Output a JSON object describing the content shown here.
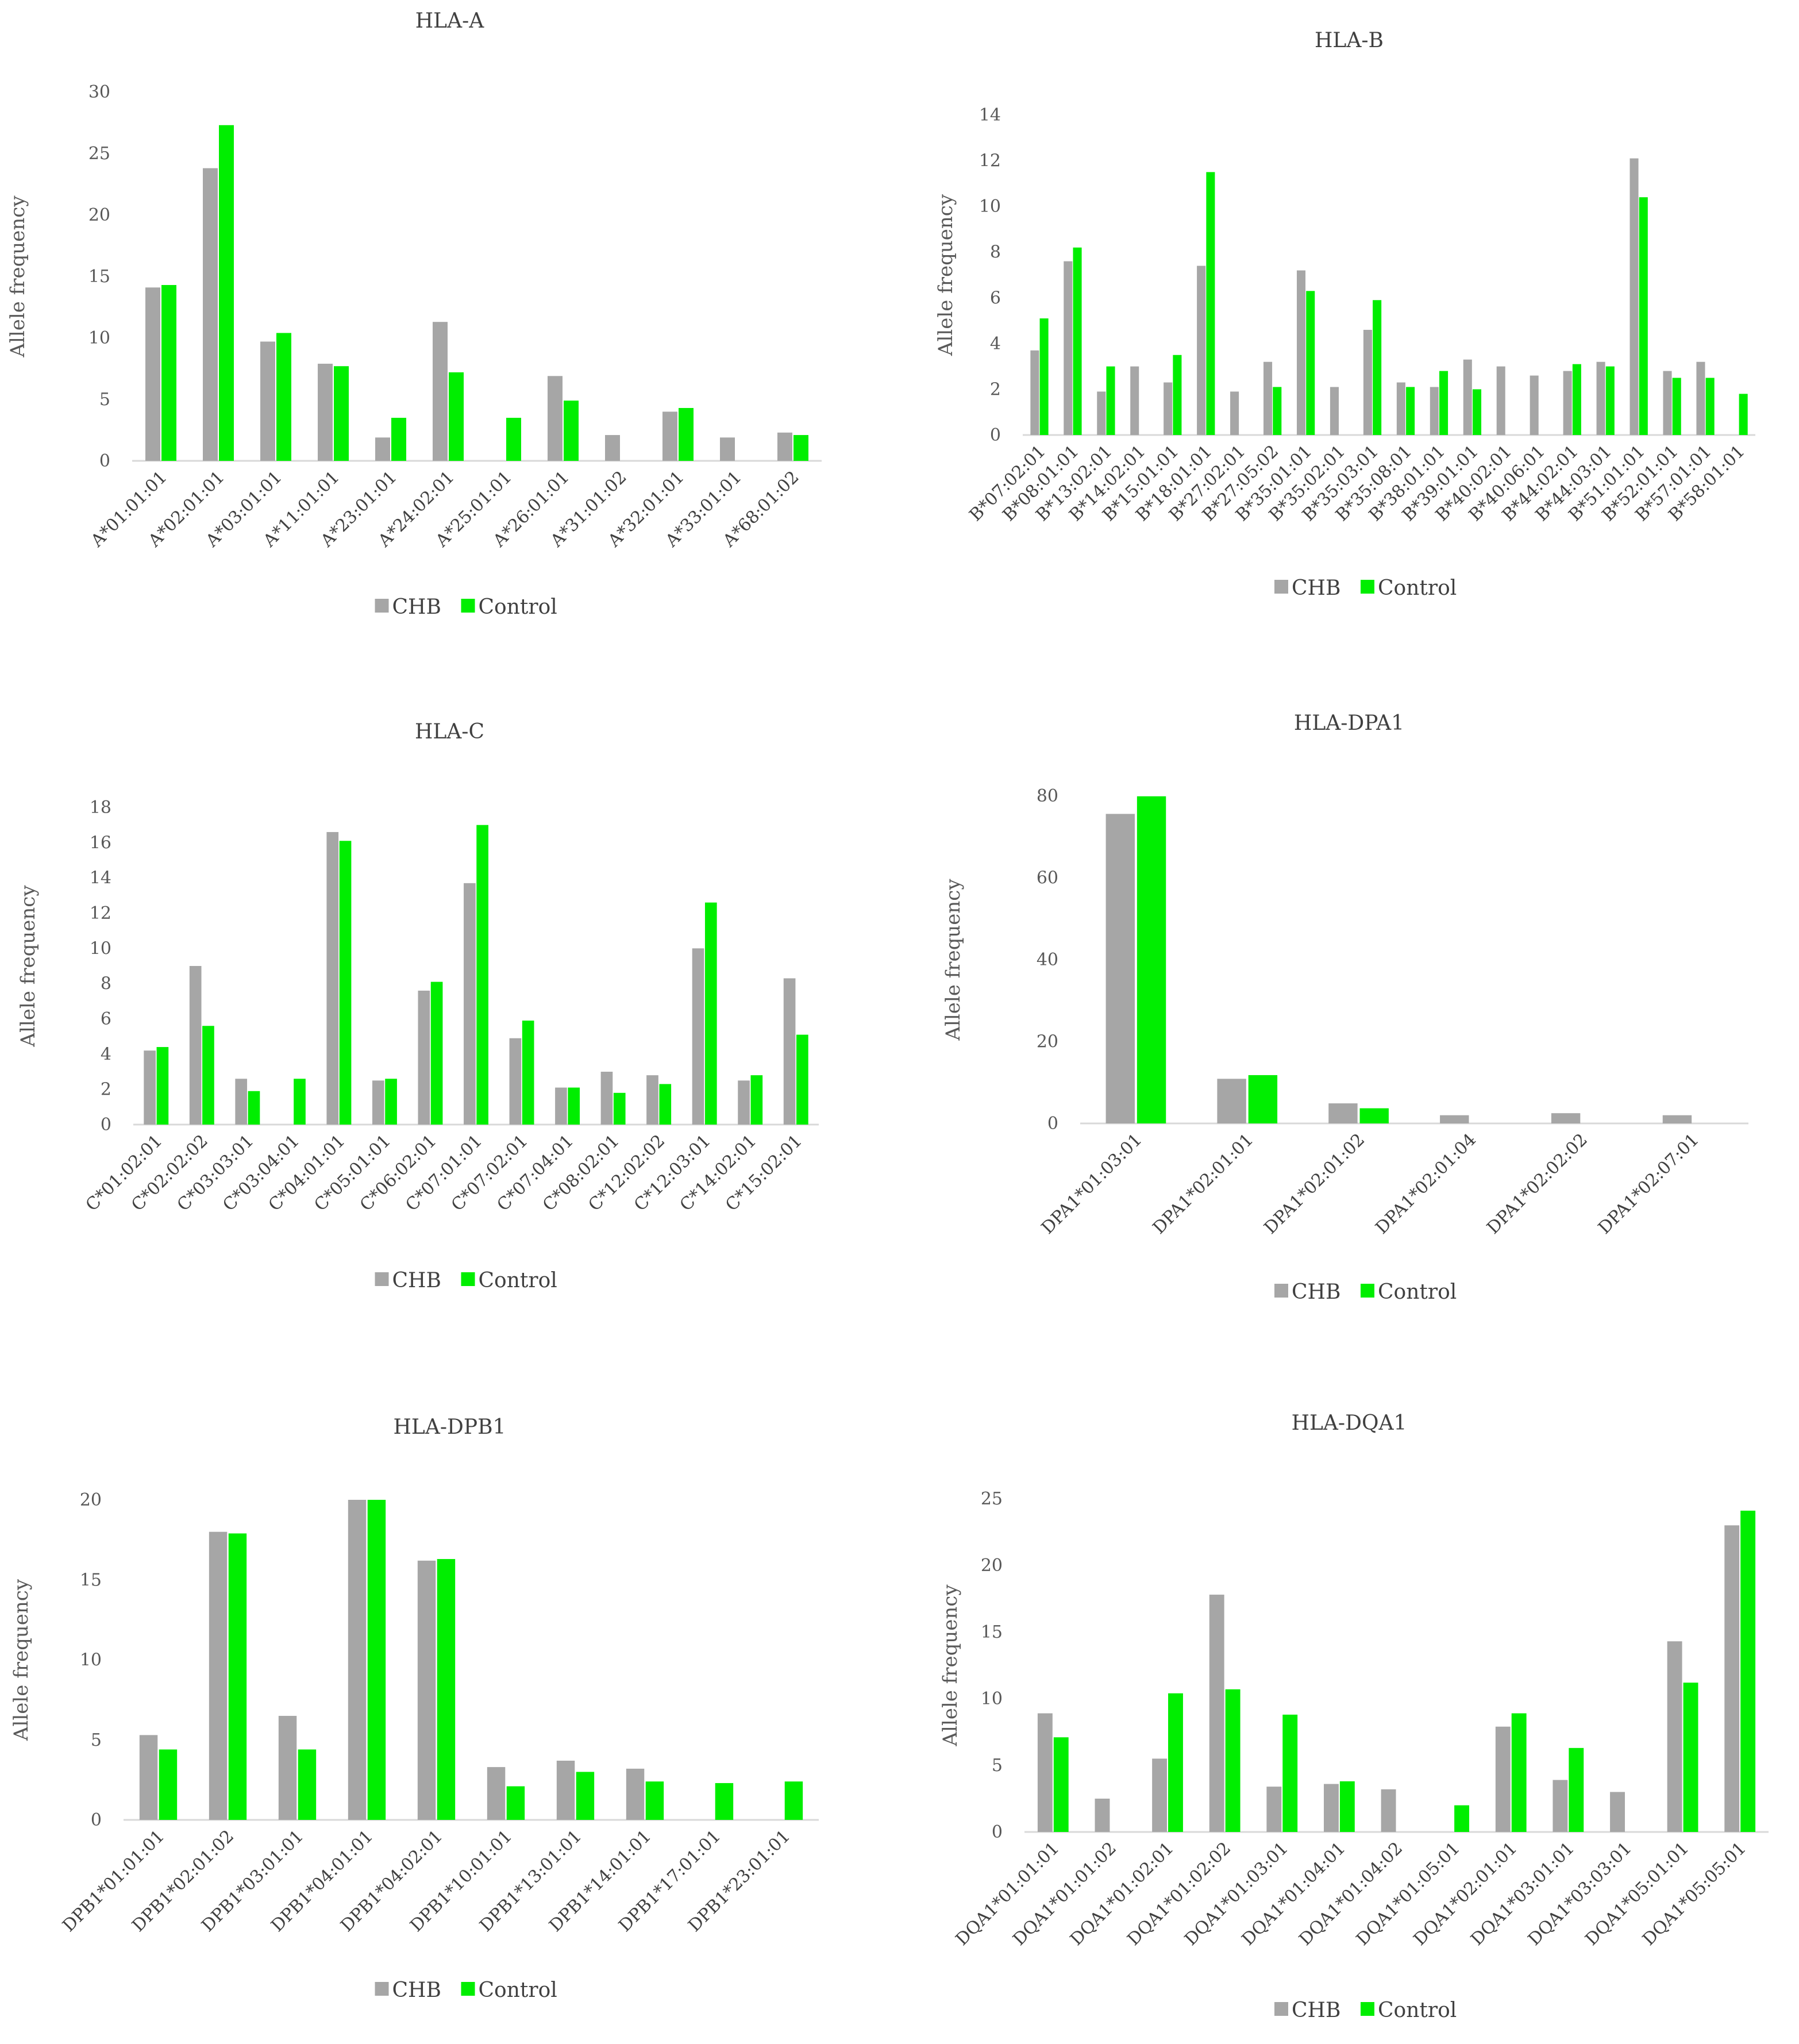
{
  "colors": {
    "CHB": "#a6a6a6",
    "Control": "#00ee00",
    "axis": "#d9d9d9"
  },
  "chart_data": [
    {
      "type": "bar",
      "title": "HLA-A",
      "ylabel": "Allele frequency",
      "ylim": [
        0,
        30
      ],
      "yticks": [
        0,
        5,
        10,
        15,
        20,
        25,
        30
      ],
      "legend_position": "bottom",
      "categories": [
        "A*01:01:01",
        "A*02:01:01",
        "A*03:01:01",
        "A*11:01:01",
        "A*23:01:01",
        "A*24:02:01",
        "A*25:01:01",
        "A*26:01:01",
        "A*31:01:02",
        "A*32:01:01",
        "A*33:01:01",
        "A*68:01:02"
      ],
      "series": [
        {
          "name": "CHB",
          "values": [
            14.1,
            23.8,
            9.7,
            7.9,
            1.9,
            11.3,
            0,
            6.9,
            2.1,
            4.0,
            1.9,
            2.3
          ]
        },
        {
          "name": "Control",
          "values": [
            14.3,
            27.3,
            10.4,
            7.7,
            3.5,
            7.2,
            3.5,
            4.9,
            0,
            4.3,
            0,
            2.1
          ]
        }
      ]
    },
    {
      "type": "bar",
      "title": "HLA-B",
      "ylabel": "Allele frequency",
      "ylim": [
        0,
        14
      ],
      "yticks": [
        0,
        2,
        4,
        6,
        8,
        10,
        12,
        14
      ],
      "legend_position": "bottom",
      "categories": [
        "B*07:02:01",
        "B*08:01:01",
        "B*13:02:01",
        "B*14:02:01",
        "B*15:01:01",
        "B*18:01:01",
        "B*27:02:01",
        "B*27:05:02",
        "B*35:01:01",
        "B*35:02:01",
        "B*35:03:01",
        "B*35:08:01",
        "B*38:01:01",
        "B*39:01:01",
        "B*40:02:01",
        "B*40:06:01",
        "B*44:02:01",
        "B*44:03:01",
        "B*51:01:01",
        "B*52:01:01",
        "B*57:01:01",
        "B*58:01:01"
      ],
      "series": [
        {
          "name": "CHB",
          "values": [
            3.7,
            7.6,
            1.9,
            3.0,
            2.3,
            7.4,
            1.9,
            3.2,
            7.2,
            2.1,
            4.6,
            2.3,
            2.1,
            3.3,
            3.0,
            2.6,
            2.8,
            3.2,
            12.1,
            2.8,
            3.2,
            0
          ]
        },
        {
          "name": "Control",
          "values": [
            5.1,
            8.2,
            3.0,
            0,
            3.5,
            11.5,
            0,
            2.1,
            6.3,
            0,
            5.9,
            2.1,
            2.8,
            2.0,
            0,
            0,
            3.1,
            3.0,
            10.4,
            2.5,
            2.5,
            1.8
          ]
        }
      ]
    },
    {
      "type": "bar",
      "title": "HLA-C",
      "ylabel": "Allele frequency",
      "ylim": [
        0,
        18
      ],
      "yticks": [
        0,
        2,
        4,
        6,
        8,
        10,
        12,
        14,
        16,
        18
      ],
      "legend_position": "bottom",
      "categories": [
        "C*01:02:01",
        "C*02:02:02",
        "C*03:03:01",
        "C*03:04:01",
        "C*04:01:01",
        "C*05:01:01",
        "C*06:02:01",
        "C*07:01:01",
        "C*07:02:01",
        "C*07:04:01",
        "C*08:02:01",
        "C*12:02:02",
        "C*12:03:01",
        "C*14:02:01",
        "C*15:02:01"
      ],
      "series": [
        {
          "name": "CHB",
          "values": [
            4.2,
            9.0,
            2.6,
            0,
            16.6,
            2.5,
            7.6,
            13.7,
            4.9,
            2.1,
            3.0,
            2.8,
            10.0,
            2.5,
            8.3
          ]
        },
        {
          "name": "Control",
          "values": [
            4.4,
            5.6,
            1.9,
            2.6,
            16.1,
            2.6,
            8.1,
            17.0,
            5.9,
            2.1,
            1.8,
            2.3,
            12.6,
            2.8,
            5.1
          ]
        }
      ]
    },
    {
      "type": "bar",
      "title": "HLA-DPA1",
      "ylabel": "Allele frequency",
      "ylim": [
        0,
        80
      ],
      "yticks": [
        0,
        20,
        40,
        60,
        80
      ],
      "legend_position": "bottom",
      "categories": [
        "DPA1*01:03:01",
        "DPA1*02:01:01",
        "DPA1*02:01:02",
        "DPA1*02:01:04",
        "DPA1*02:02:02",
        "DPA1*02:07:01"
      ],
      "series": [
        {
          "name": "CHB",
          "values": [
            75.6,
            10.9,
            4.9,
            2.0,
            2.5,
            2.0
          ]
        },
        {
          "name": "Control",
          "values": [
            79.9,
            11.8,
            3.7,
            0,
            0,
            0
          ]
        }
      ]
    },
    {
      "type": "bar",
      "title": "HLA-DPB1",
      "ylabel": "Allele frequency",
      "ylim": [
        0,
        20
      ],
      "yticks": [
        0,
        5,
        10,
        15,
        20
      ],
      "legend_position": "bottom",
      "categories": [
        "DPB1*01:01:01",
        "DPB1*02:01:02",
        "DPB1*03:01:01",
        "DPB1*04:01:01",
        "DPB1*04:02:01",
        "DPB1*10:01:01",
        "DPB1*13:01:01",
        "DPB1*14:01:01",
        "DPB1*17:01:01",
        "DPB1*23:01:01"
      ],
      "series": [
        {
          "name": "CHB",
          "values": [
            5.3,
            18.0,
            6.5,
            20.0,
            16.2,
            3.3,
            3.7,
            3.2,
            0,
            0
          ]
        },
        {
          "name": "Control",
          "values": [
            4.4,
            17.9,
            4.4,
            20.0,
            16.3,
            2.1,
            3.0,
            2.4,
            2.3,
            2.4
          ]
        }
      ]
    },
    {
      "type": "bar",
      "title": "HLA-DQA1",
      "ylabel": "Allele frequency",
      "ylim": [
        0,
        25
      ],
      "yticks": [
        0,
        5,
        10,
        15,
        20,
        25
      ],
      "legend_position": "bottom",
      "categories": [
        "DQA1*01:01:01",
        "DQA1*01:01:02",
        "DQA1*01:02:01",
        "DQA1*01:02:02",
        "DQA1*01:03:01",
        "DQA1*01:04:01",
        "DQA1*01:04:02",
        "DQA1*01:05:01",
        "DQA1*02:01:01",
        "DQA1*03:01:01",
        "DQA1*03:03:01",
        "DQA1*05:01:01",
        "DQA1*05:05:01"
      ],
      "series": [
        {
          "name": "CHB",
          "values": [
            8.9,
            2.5,
            5.5,
            17.8,
            3.4,
            3.6,
            3.2,
            0,
            7.9,
            3.9,
            3.0,
            14.3,
            23.0
          ]
        },
        {
          "name": "Control",
          "values": [
            7.1,
            0,
            10.4,
            10.7,
            8.8,
            3.8,
            0,
            2.0,
            8.9,
            6.3,
            0,
            11.2,
            24.1
          ]
        }
      ]
    }
  ]
}
